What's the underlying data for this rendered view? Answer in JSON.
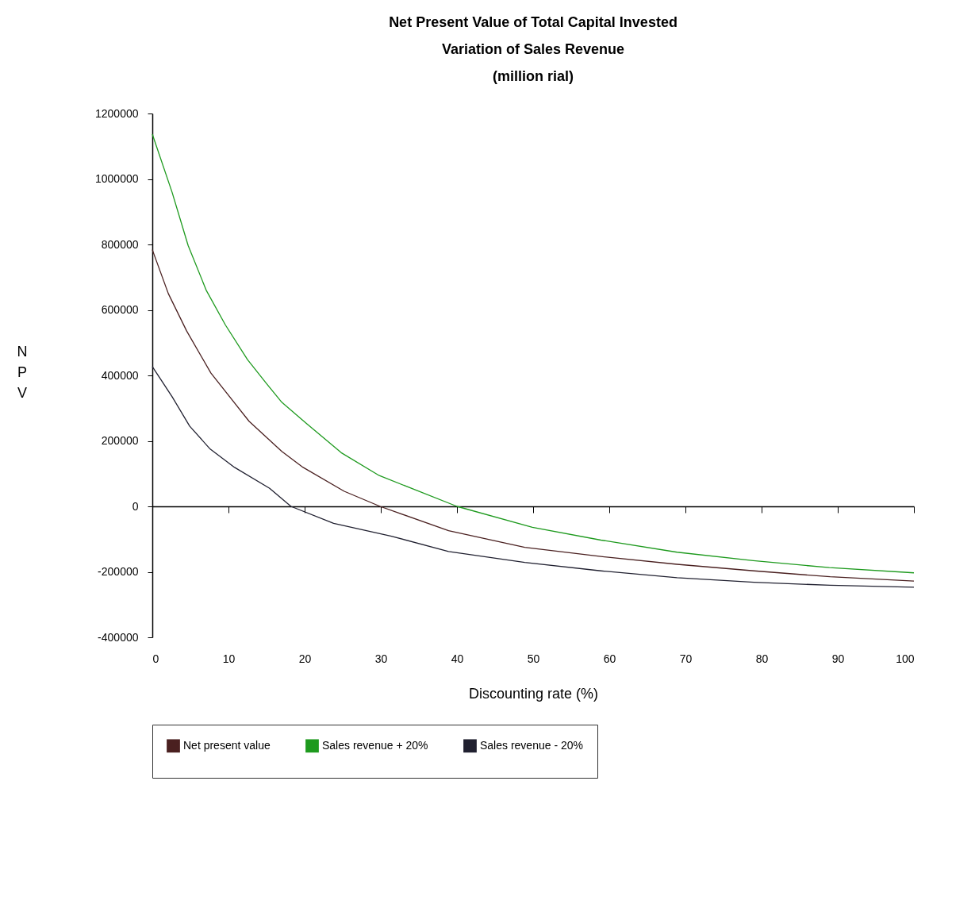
{
  "chart_data": {
    "type": "line",
    "title": [
      "Net Present Value of Total Capital Invested",
      "Variation of Sales Revenue",
      "(million rial)"
    ],
    "xlabel": "Discounting rate (%)",
    "ylabel": "NPV",
    "xlim": [
      0,
      100
    ],
    "ylim": [
      -400000,
      1200000
    ],
    "xticks": [
      0,
      10,
      20,
      30,
      40,
      50,
      60,
      70,
      80,
      90,
      100
    ],
    "yticks": [
      -400000,
      -200000,
      0,
      200000,
      400000,
      600000,
      800000,
      1000000,
      1200000
    ],
    "legend": "bottom",
    "marker": "none",
    "line_style": "solid",
    "series": [
      {
        "name": "Net present value",
        "color": "#4a2020",
        "x": [
          0,
          2.1,
          4.5,
          7.7,
          12.7,
          17,
          19.8,
          25.2,
          29.9,
          38.9,
          48.9,
          58.9,
          68.9,
          79,
          89,
          100
        ],
        "values": [
          784000,
          650000,
          536000,
          407000,
          260000,
          168000,
          119000,
          46000,
          0,
          -74000,
          -125000,
          -153000,
          -177000,
          -197000,
          -215000,
          -228000
        ]
      },
      {
        "name": "Sales revenue + 20%",
        "color": "#1e9a1e",
        "x": [
          0,
          2.6,
          4.7,
          7.1,
          9.6,
          12.5,
          15,
          17,
          20.2,
          24.8,
          29.8,
          40,
          49.9,
          58.9,
          68.9,
          78.9,
          88.9,
          100
        ],
        "values": [
          1137000,
          959000,
          797000,
          659000,
          554000,
          448000,
          375000,
          318000,
          254000,
          164000,
          94000,
          0,
          -64000,
          -103000,
          -140000,
          -166000,
          -187000,
          -203000
        ]
      },
      {
        "name": "Sales revenue - 20%",
        "color": "#202030",
        "x": [
          0,
          2.6,
          4.9,
          7.6,
          10.8,
          15.4,
          18.2,
          23.8,
          31.4,
          38.9,
          48.9,
          58.9,
          68.9,
          79,
          89,
          100
        ],
        "values": [
          427000,
          335000,
          245000,
          175000,
          119000,
          55000,
          0,
          -52000,
          -91000,
          -138000,
          -171000,
          -197000,
          -218000,
          -232000,
          -241000,
          -247000
        ]
      }
    ]
  }
}
